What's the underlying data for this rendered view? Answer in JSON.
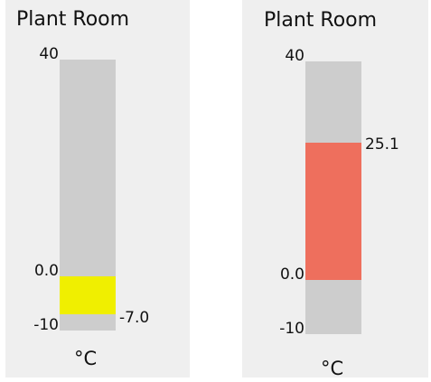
{
  "gauges": [
    {
      "title": "Plant Room",
      "unit": "°C",
      "scale": {
        "min": -10,
        "max": 40,
        "zero": 0
      },
      "labels": {
        "max": "40",
        "zero": "0.0",
        "min": "-10"
      },
      "value": -7.0,
      "value_label": "-7.0",
      "fill_color": "#f0ef00"
    },
    {
      "title": "Plant Room",
      "unit": "°C",
      "scale": {
        "min": -10,
        "max": 40,
        "zero": 0
      },
      "labels": {
        "max": "40",
        "zero": "0.0",
        "min": "-10"
      },
      "value": 25.1,
      "value_label": "25.1",
      "fill_color": "#ee6f5d"
    }
  ],
  "colors": {
    "panel_bg": "#efefef",
    "track": "#cdcdcd"
  }
}
